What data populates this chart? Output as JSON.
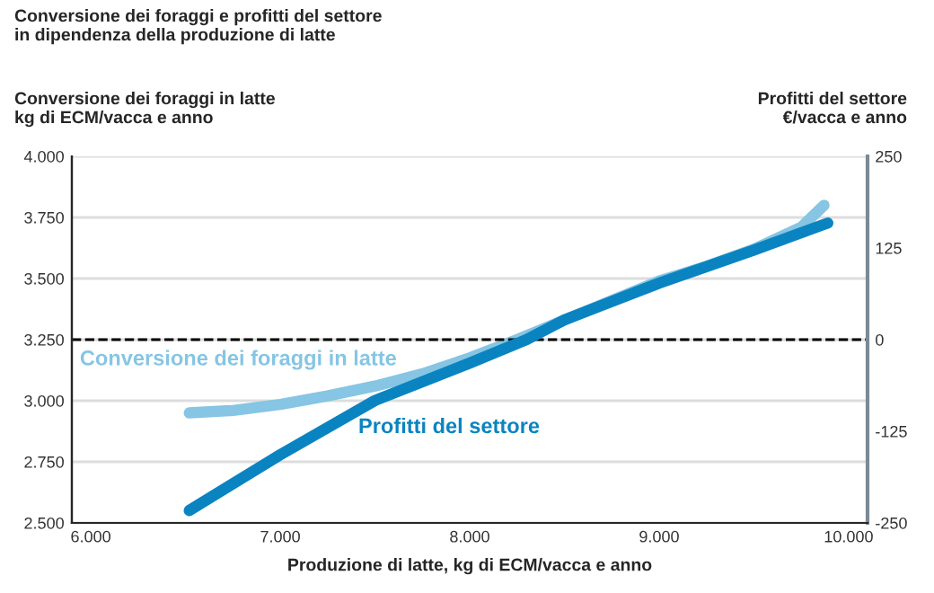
{
  "chart_data": {
    "type": "line",
    "title": "Conversione dei foraggi e profitti del settore\nin dipendenza della produzione di latte",
    "xlabel": "Produzione di latte, kg di ECM/vacca e anno",
    "ylabel": "Conversione dei foraggi in latte\nkg di ECM/vacca e anno",
    "y2label": "Profitti del settore\n€/vacca e anno",
    "series": [
      {
        "name": "Conversione dei foraggi in latte",
        "color": "#86c5e3",
        "x": [
          6520,
          6750,
          7000,
          7250,
          7500,
          7750,
          8000,
          8250,
          8500,
          8750,
          9000,
          9250,
          9500,
          9750,
          9870
        ],
        "values": [
          2950,
          2960,
          2985,
          3020,
          3060,
          3110,
          3175,
          3250,
          3330,
          3410,
          3490,
          3550,
          3620,
          3710,
          3800
        ]
      },
      {
        "name": "Profitti del settore",
        "color": "#0a84c1",
        "axis": "y2",
        "x": [
          6520,
          7000,
          7500,
          8000,
          8300,
          8500,
          9000,
          9500,
          9890
        ],
        "values": [
          -233,
          -157,
          -83,
          -32,
          0,
          27,
          77,
          122,
          159
        ]
      }
    ],
    "xlim": [
      5900,
      10100
    ],
    "xticks": [
      {
        "value": 6000,
        "label": "6.000"
      },
      {
        "value": 7000,
        "label": "7.000"
      },
      {
        "value": 8000,
        "label": "8.000"
      },
      {
        "value": 9000,
        "label": "9.000"
      },
      {
        "value": 10000,
        "label": "10.000"
      }
    ],
    "ylim": [
      2500,
      4000
    ],
    "yticks": [
      {
        "value": 2500,
        "label": "2.500"
      },
      {
        "value": 2750,
        "label": "2.750"
      },
      {
        "value": 3000,
        "label": "3.000"
      },
      {
        "value": 3250,
        "label": "3.250"
      },
      {
        "value": 3500,
        "label": "3.500"
      },
      {
        "value": 3750,
        "label": "3.750"
      },
      {
        "value": 4000,
        "label": "4.000"
      }
    ],
    "y2lim": [
      -250,
      250
    ],
    "y2ticks": [
      -250,
      -125,
      0,
      125,
      250
    ],
    "ref_lines": [
      {
        "axis": "y2",
        "value": 0,
        "color": "#000000",
        "line_style": "dashed"
      }
    ],
    "grid": "y",
    "line_style": "solid"
  }
}
